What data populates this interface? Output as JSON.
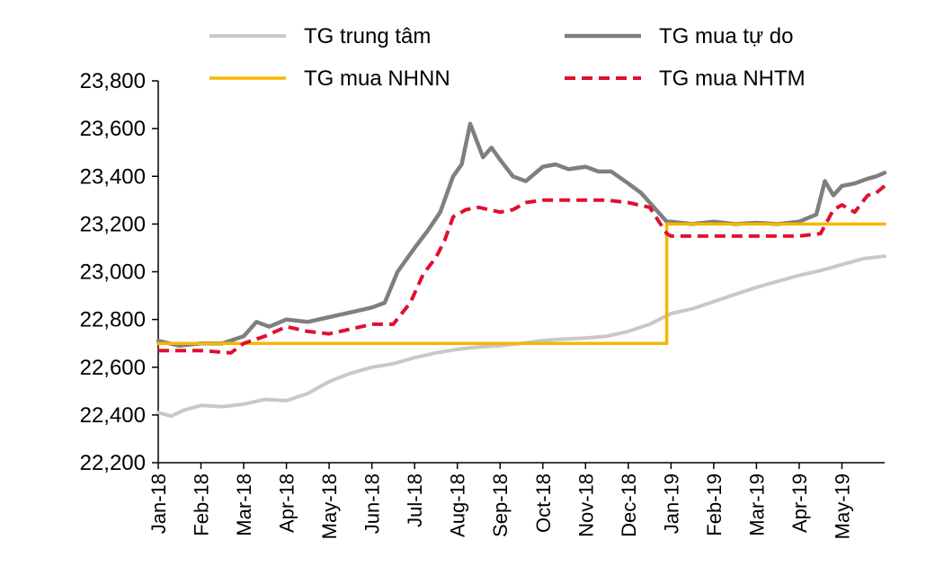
{
  "chart_data": {
    "type": "line",
    "title": "",
    "xlabel": "",
    "ylabel": "",
    "ylim": [
      22200,
      23800
    ],
    "y_ticks": [
      22200,
      22400,
      22600,
      22800,
      23000,
      23200,
      23400,
      23600,
      23800
    ],
    "y_tick_labels": [
      "22,200",
      "22,400",
      "22,600",
      "22,800",
      "23,000",
      "23,200",
      "23,400",
      "23,600",
      "23,800"
    ],
    "x_range_months": [
      0,
      17
    ],
    "x_tick_labels": [
      "Jan-18",
      "Feb-18",
      "Mar-18",
      "Apr-18",
      "May-18",
      "Jun-18",
      "Jul-18",
      "Aug-18",
      "Sep-18",
      "Oct-18",
      "Nov-18",
      "Dec-18",
      "Jan-19",
      "Feb-19",
      "Mar-19",
      "Apr-19",
      "May-19"
    ],
    "grid": false,
    "legend_position": "top",
    "series": [
      {
        "name": "TG trung tâm",
        "color": "#c8c8c8",
        "style": "solid",
        "x": [
          0,
          0.3,
          0.6,
          1,
          1.5,
          2,
          2.5,
          3,
          3.5,
          4,
          4.5,
          5,
          5.5,
          6,
          6.5,
          7,
          7.5,
          8,
          8.5,
          9,
          9.5,
          10,
          10.5,
          11,
          11.5,
          12,
          12.5,
          13,
          13.5,
          14,
          14.5,
          15,
          15.5,
          16,
          16.5,
          17
        ],
        "values": [
          22410,
          22395,
          22420,
          22440,
          22435,
          22445,
          22465,
          22460,
          22490,
          22540,
          22575,
          22600,
          22615,
          22640,
          22660,
          22675,
          22685,
          22690,
          22700,
          22712,
          22718,
          22722,
          22730,
          22750,
          22780,
          22825,
          22845,
          22875,
          22905,
          22935,
          22960,
          22985,
          23005,
          23030,
          23055,
          23065
        ]
      },
      {
        "name": "TG mua tự do",
        "color": "#7f7f7f",
        "style": "solid",
        "x": [
          0,
          0.5,
          1,
          1.5,
          2,
          2.3,
          2.6,
          3,
          3.5,
          4,
          4.5,
          5,
          5.3,
          5.6,
          6,
          6.3,
          6.6,
          6.9,
          7.1,
          7.3,
          7.6,
          7.8,
          8,
          8.3,
          8.6,
          9,
          9.3,
          9.6,
          10,
          10.3,
          10.6,
          11,
          11.3,
          11.6,
          11.9,
          12,
          12.5,
          13,
          13.5,
          14,
          14.5,
          15,
          15.4,
          15.6,
          15.8,
          16,
          16.3,
          16.6,
          16.8,
          17
        ],
        "values": [
          22710,
          22690,
          22700,
          22700,
          22730,
          22790,
          22770,
          22800,
          22790,
          22810,
          22830,
          22850,
          22870,
          23000,
          23100,
          23170,
          23250,
          23400,
          23450,
          23620,
          23480,
          23520,
          23470,
          23400,
          23380,
          23440,
          23450,
          23430,
          23440,
          23420,
          23420,
          23370,
          23330,
          23270,
          23210,
          23210,
          23200,
          23210,
          23200,
          23205,
          23200,
          23210,
          23240,
          23380,
          23320,
          23360,
          23370,
          23390,
          23400,
          23415
        ]
      },
      {
        "name": "TG mua NHNN",
        "color": "#f5b700",
        "style": "solid",
        "x": [
          0,
          11.9,
          11.9,
          17
        ],
        "values": [
          22700,
          22700,
          23200,
          23200
        ]
      },
      {
        "name": "TG mua NHTM",
        "color": "#e0102f",
        "style": "dashed",
        "x": [
          0,
          1,
          1.7,
          2,
          2.5,
          3,
          3.5,
          4,
          4.5,
          5,
          5.5,
          5.9,
          6.2,
          6.5,
          6.7,
          6.9,
          7.2,
          7.5,
          8,
          8.3,
          8.6,
          9,
          9.5,
          10,
          10.5,
          11,
          11.5,
          11.9,
          12,
          12.5,
          13,
          13.5,
          14,
          14.5,
          15,
          15.5,
          15.8,
          16,
          16.3,
          16.6,
          16.8,
          17
        ],
        "values": [
          22670,
          22670,
          22660,
          22700,
          22730,
          22770,
          22750,
          22740,
          22760,
          22780,
          22780,
          22870,
          22990,
          23060,
          23130,
          23230,
          23260,
          23270,
          23250,
          23260,
          23290,
          23300,
          23300,
          23300,
          23300,
          23290,
          23270,
          23160,
          23150,
          23150,
          23150,
          23150,
          23150,
          23150,
          23150,
          23160,
          23260,
          23280,
          23250,
          23320,
          23330,
          23360
        ]
      }
    ]
  }
}
